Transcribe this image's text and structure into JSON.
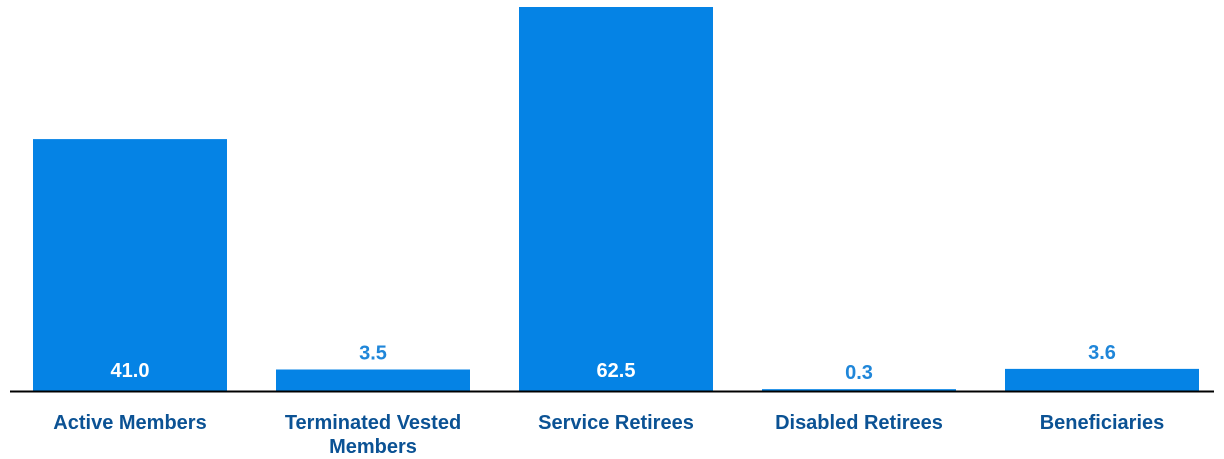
{
  "chart_data": {
    "type": "bar",
    "title": "",
    "xlabel": "",
    "ylabel": "",
    "categories": [
      [
        "Active Members"
      ],
      [
        "Terminated Vested",
        "Members"
      ],
      [
        "Service Retirees"
      ],
      [
        "Disabled Retirees"
      ],
      [
        "Beneficiaries"
      ]
    ],
    "values": [
      41.0,
      3.5,
      62.5,
      0.3,
      3.6
    ],
    "value_labels": [
      "41.0",
      "3.5",
      "62.5",
      "0.3",
      "3.6"
    ],
    "ylim": [
      0,
      62.5
    ],
    "grid": false,
    "legend": "none",
    "colors": {
      "bar": "#0583E5",
      "label_inside": "#ffffff",
      "label_outside": "#1F86D9",
      "category_text": "#0B5294",
      "axis": "#000000"
    }
  }
}
